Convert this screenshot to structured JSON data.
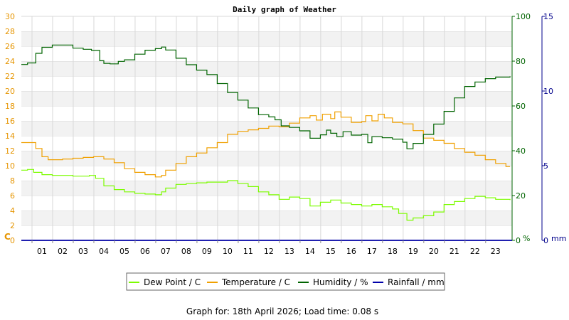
{
  "colors": {
    "dew_point": "#7cfc00",
    "temperature": "#f0a000",
    "humidity": "#006400",
    "rainfall": "#0000aa",
    "left_axis": "#e69500",
    "hum_axis": "#006400",
    "rain_axis": "#00008b",
    "band": "#f2f2f2",
    "grid": "#d8d8d8"
  },
  "footer": {
    "text": "Graph for: 18th April 2026; Load time: 0.08 s"
  },
  "chart_data": {
    "type": "line",
    "title": "Daily graph of Weather",
    "x_ticks": [
      "01",
      "02",
      "03",
      "04",
      "05",
      "06",
      "07",
      "08",
      "09",
      "10",
      "11",
      "12",
      "13",
      "14",
      "15",
      "16",
      "17",
      "18",
      "19",
      "20",
      "21",
      "22",
      "23"
    ],
    "xlim": [
      0,
      23.8
    ],
    "axes": {
      "left": {
        "unit": "C",
        "ylim": [
          0,
          30
        ],
        "ticks": [
          "0",
          "2",
          "4",
          "6",
          "8",
          "10",
          "12",
          "14",
          "16",
          "18",
          "20",
          "22",
          "24",
          "26",
          "28",
          "30"
        ]
      },
      "right_humidity": {
        "unit": "%",
        "ylim": [
          0,
          100
        ],
        "ticks": [
          "0",
          "20",
          "40",
          "60",
          "80",
          "100"
        ]
      },
      "right_rainfall": {
        "unit": "mm",
        "ylim": [
          0,
          15
        ],
        "ticks": [
          "0",
          "5",
          "10",
          "15"
        ]
      }
    },
    "grid": true,
    "legend_position": "bottom",
    "legend": [
      "Dew Point / C",
      "Temperature / C",
      "Humidity / %",
      "Rainfall / mm"
    ],
    "series": [
      {
        "name": "Dew Point / C",
        "axis": "left",
        "color": "#7cfc00",
        "points": [
          [
            0,
            9.4
          ],
          [
            0.3,
            9.5
          ],
          [
            0.6,
            9.1
          ],
          [
            1,
            8.8
          ],
          [
            1.5,
            8.7
          ],
          [
            2,
            8.7
          ],
          [
            2.5,
            8.6
          ],
          [
            3,
            8.6
          ],
          [
            3.3,
            8.7
          ],
          [
            3.6,
            8.3
          ],
          [
            4,
            7.3
          ],
          [
            4.5,
            6.8
          ],
          [
            5,
            6.5
          ],
          [
            5.5,
            6.3
          ],
          [
            6,
            6.2
          ],
          [
            6.5,
            6.1
          ],
          [
            6.8,
            6.5
          ],
          [
            7,
            7.0
          ],
          [
            7.5,
            7.5
          ],
          [
            8,
            7.6
          ],
          [
            8.5,
            7.7
          ],
          [
            9,
            7.8
          ],
          [
            9.5,
            7.8
          ],
          [
            10,
            8.0
          ],
          [
            10.5,
            7.6
          ],
          [
            11,
            7.2
          ],
          [
            11.5,
            6.5
          ],
          [
            12,
            6.1
          ],
          [
            12.5,
            5.5
          ],
          [
            13,
            5.8
          ],
          [
            13.5,
            5.6
          ],
          [
            14,
            4.6
          ],
          [
            14.5,
            5.1
          ],
          [
            15,
            5.4
          ],
          [
            15.5,
            5.0
          ],
          [
            16,
            4.8
          ],
          [
            16.5,
            4.6
          ],
          [
            17,
            4.8
          ],
          [
            17.5,
            4.5
          ],
          [
            18,
            4.2
          ],
          [
            18.3,
            3.6
          ],
          [
            18.7,
            2.7
          ],
          [
            19,
            3.0
          ],
          [
            19.5,
            3.3
          ],
          [
            20,
            3.8
          ],
          [
            20.5,
            4.8
          ],
          [
            21,
            5.2
          ],
          [
            21.5,
            5.6
          ],
          [
            22,
            5.9
          ],
          [
            22.5,
            5.7
          ],
          [
            23,
            5.5
          ],
          [
            23.7,
            5.4
          ]
        ]
      },
      {
        "name": "Temperature / C",
        "axis": "left",
        "color": "#f0a000",
        "points": [
          [
            0,
            13.1
          ],
          [
            0.4,
            13.1
          ],
          [
            0.7,
            12.3
          ],
          [
            1,
            11.2
          ],
          [
            1.3,
            10.8
          ],
          [
            2,
            10.9
          ],
          [
            2.5,
            11.0
          ],
          [
            3,
            11.1
          ],
          [
            3.5,
            11.2
          ],
          [
            4,
            10.9
          ],
          [
            4.5,
            10.4
          ],
          [
            5,
            9.6
          ],
          [
            5.5,
            9.1
          ],
          [
            6,
            8.8
          ],
          [
            6.5,
            8.5
          ],
          [
            6.8,
            8.7
          ],
          [
            7,
            9.4
          ],
          [
            7.5,
            10.3
          ],
          [
            8,
            11.2
          ],
          [
            8.5,
            11.7
          ],
          [
            9,
            12.4
          ],
          [
            9.5,
            13.1
          ],
          [
            10,
            14.2
          ],
          [
            10.5,
            14.6
          ],
          [
            11,
            14.8
          ],
          [
            11.5,
            15.0
          ],
          [
            12,
            15.3
          ],
          [
            12.5,
            15.2
          ],
          [
            13,
            15.7
          ],
          [
            13.5,
            16.4
          ],
          [
            14,
            16.7
          ],
          [
            14.3,
            16.1
          ],
          [
            14.6,
            16.9
          ],
          [
            15,
            16.3
          ],
          [
            15.2,
            17.2
          ],
          [
            15.5,
            16.5
          ],
          [
            16,
            15.8
          ],
          [
            16.5,
            15.9
          ],
          [
            16.7,
            16.7
          ],
          [
            17,
            16.0
          ],
          [
            17.3,
            16.9
          ],
          [
            17.6,
            16.4
          ],
          [
            18,
            15.8
          ],
          [
            18.5,
            15.6
          ],
          [
            19,
            14.7
          ],
          [
            19.5,
            13.7
          ],
          [
            20,
            13.4
          ],
          [
            20.5,
            13.0
          ],
          [
            21,
            12.3
          ],
          [
            21.5,
            11.8
          ],
          [
            22,
            11.4
          ],
          [
            22.5,
            10.8
          ],
          [
            23,
            10.3
          ],
          [
            23.5,
            9.9
          ],
          [
            23.7,
            9.9
          ]
        ]
      },
      {
        "name": "Humidity / %",
        "axis": "right_humidity",
        "color": "#006400",
        "points": [
          [
            0,
            78.5
          ],
          [
            0.3,
            79.2
          ],
          [
            0.7,
            83.5
          ],
          [
            1,
            86.2
          ],
          [
            1.5,
            87.2
          ],
          [
            2,
            87.2
          ],
          [
            2.5,
            85.8
          ],
          [
            3,
            85.3
          ],
          [
            3.4,
            84.8
          ],
          [
            3.8,
            80.2
          ],
          [
            4,
            79.0
          ],
          [
            4.3,
            78.8
          ],
          [
            4.7,
            79.9
          ],
          [
            5,
            80.6
          ],
          [
            5.5,
            83.1
          ],
          [
            6,
            84.9
          ],
          [
            6.5,
            85.6
          ],
          [
            6.8,
            86.3
          ],
          [
            7,
            85.0
          ],
          [
            7.5,
            81.3
          ],
          [
            8,
            78.4
          ],
          [
            8.5,
            76.0
          ],
          [
            9,
            74.0
          ],
          [
            9.5,
            70.0
          ],
          [
            10,
            66.0
          ],
          [
            10.5,
            62.6
          ],
          [
            11,
            59.1
          ],
          [
            11.5,
            56.1
          ],
          [
            12,
            55.1
          ],
          [
            12.3,
            53.8
          ],
          [
            12.6,
            51.1
          ],
          [
            13,
            50.4
          ],
          [
            13.5,
            48.9
          ],
          [
            14,
            45.6
          ],
          [
            14.5,
            47.1
          ],
          [
            14.8,
            49.2
          ],
          [
            15,
            47.8
          ],
          [
            15.3,
            46.3
          ],
          [
            15.6,
            48.5
          ],
          [
            16,
            47.0
          ],
          [
            16.5,
            47.3
          ],
          [
            16.8,
            43.6
          ],
          [
            17,
            46.3
          ],
          [
            17.5,
            45.8
          ],
          [
            18,
            45.2
          ],
          [
            18.5,
            43.8
          ],
          [
            18.7,
            40.9
          ],
          [
            19,
            43.3
          ],
          [
            19.5,
            47.3
          ],
          [
            20,
            51.9
          ],
          [
            20.5,
            57.6
          ],
          [
            21,
            63.6
          ],
          [
            21.5,
            68.7
          ],
          [
            22,
            70.7
          ],
          [
            22.5,
            72.2
          ],
          [
            23,
            72.9
          ],
          [
            23.7,
            73.2
          ]
        ]
      },
      {
        "name": "Rainfall / mm",
        "axis": "right_rainfall",
        "color": "#0000aa",
        "points": [
          [
            0,
            0
          ],
          [
            23.8,
            0
          ]
        ]
      }
    ]
  }
}
